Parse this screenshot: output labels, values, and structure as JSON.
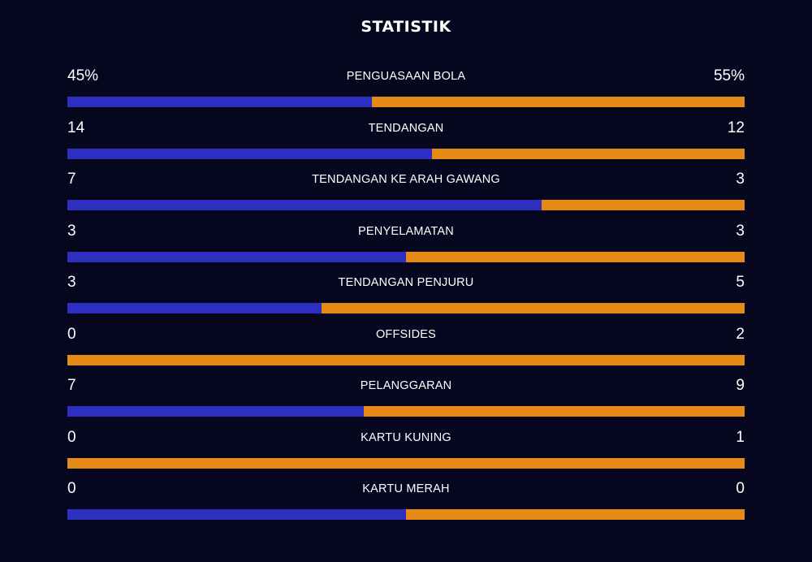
{
  "header": {
    "title": "STATISTIK"
  },
  "colors": {
    "background": "#07061f",
    "home": "#2c2fc0",
    "away": "#e58a17"
  },
  "stats": [
    {
      "label": "PENGUASAAN BOLA",
      "home": "45%",
      "away": "55%",
      "home_share": 0.45
    },
    {
      "label": "TENDANGAN",
      "home": "14",
      "away": "12",
      "home_share": 0.5385
    },
    {
      "label": "TENDANGAN KE ARAH GAWANG",
      "home": "7",
      "away": "3",
      "home_share": 0.7
    },
    {
      "label": "PENYELAMATAN",
      "home": "3",
      "away": "3",
      "home_share": 0.5
    },
    {
      "label": "TENDANGAN PENJURU",
      "home": "3",
      "away": "5",
      "home_share": 0.375
    },
    {
      "label": "OFFSIDES",
      "home": "0",
      "away": "2",
      "home_share": 0
    },
    {
      "label": "PELANGGARAN",
      "home": "7",
      "away": "9",
      "home_share": 0.4375
    },
    {
      "label": "KARTU KUNING",
      "home": "0",
      "away": "1",
      "home_share": 0
    },
    {
      "label": "KARTU MERAH",
      "home": "0",
      "away": "0",
      "home_share": 0.5
    }
  ]
}
